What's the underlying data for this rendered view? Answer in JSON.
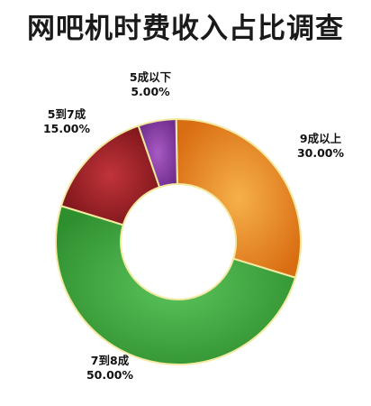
{
  "chart_data": {
    "type": "pie",
    "title": "网吧机时费收入占比调查",
    "donut": true,
    "slices": [
      {
        "label": "9成以上",
        "value": 30.0,
        "display": "30.00%",
        "color": "#e8891f"
      },
      {
        "label": "7到8成",
        "value": 50.0,
        "display": "50.00%",
        "color": "#3aa63a"
      },
      {
        "label": "5到7成",
        "value": 15.0,
        "display": "15.00%",
        "color": "#9a1e24"
      },
      {
        "label": "5成以下",
        "value": 5.0,
        "display": "5.00%",
        "color": "#8b3fa6"
      }
    ]
  }
}
